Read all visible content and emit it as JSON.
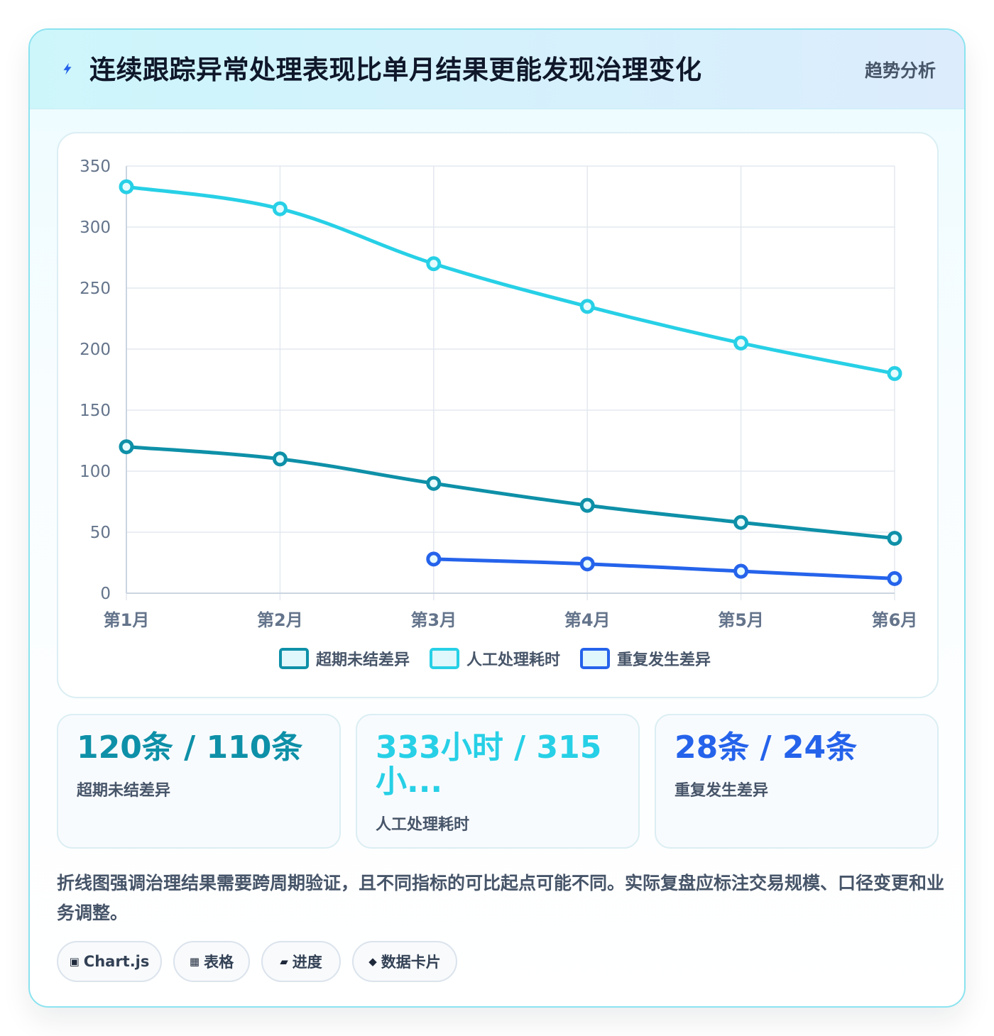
{
  "header": {
    "title": "连续跟踪异常处理表现比单月结果更能发现治理变化",
    "tag": "趋势分析",
    "icon": "lightning-icon"
  },
  "chart_data": {
    "type": "line",
    "categories": [
      "第1月",
      "第2月",
      "第3月",
      "第4月",
      "第5月",
      "第6月"
    ],
    "series": [
      {
        "name": "超期未结差异",
        "values": [
          120,
          110,
          90,
          72,
          58,
          45
        ],
        "color": "#0e90a8"
      },
      {
        "name": "人工处理耗时",
        "values": [
          333,
          315,
          270,
          235,
          205,
          180
        ],
        "color": "#27d0e6"
      },
      {
        "name": "重复发生差异",
        "values": [
          null,
          null,
          28,
          24,
          18,
          12
        ],
        "color": "#2563eb"
      }
    ],
    "yticks": [
      0,
      50,
      100,
      150,
      200,
      250,
      300,
      350
    ],
    "ylim": [
      0,
      350
    ],
    "grid": true,
    "legend": "bottom"
  },
  "stats": [
    {
      "value": "120条 / 110条",
      "label": "超期未结差异",
      "color": "#0e90a8"
    },
    {
      "value": "333小时 / 315小...",
      "label": "人工处理耗时",
      "color": "#27d0e6"
    },
    {
      "value": "28条 / 24条",
      "label": "重复发生差异",
      "color": "#2563eb"
    }
  ],
  "note": "折线图强调治理结果需要跨周期验证，且不同指标的可比起点可能不同。实际复盘应标注交易规模、口径变更和业务调整。",
  "chips": [
    {
      "icon": "▣",
      "label": "Chart.js",
      "icon_name": "chart-icon"
    },
    {
      "icon": "▦",
      "label": "表格",
      "icon_name": "table-icon"
    },
    {
      "icon": "▰",
      "label": "进度",
      "icon_name": "progress-icon"
    },
    {
      "icon": "◆",
      "label": "数据卡片",
      "icon_name": "card-icon"
    }
  ]
}
